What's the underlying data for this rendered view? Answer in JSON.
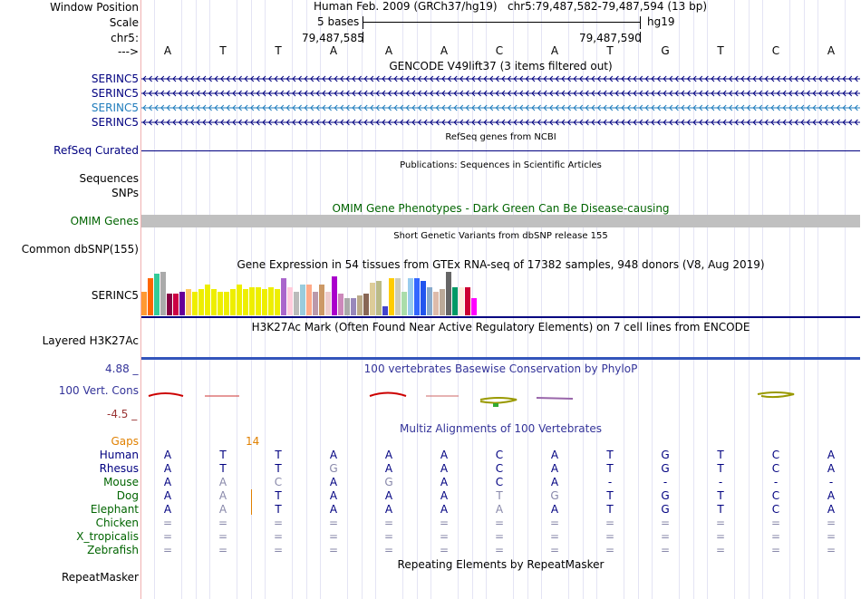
{
  "header": {
    "window_position_label": "Window Position",
    "scale_label": "Scale",
    "chr_label": "chr5:",
    "strand_label": "--->",
    "assembly": "Human Feb. 2009 (GRCh37/hg19)",
    "position": "chr5:79,487,582-79,487,594 (13 bp)",
    "scale_text": "5 bases",
    "db": "hg19",
    "coord_left": "79,487,585",
    "coord_right": "79,487,590",
    "bases": [
      "A",
      "T",
      "T",
      "A",
      "A",
      "A",
      "C",
      "A",
      "T",
      "G",
      "T",
      "C",
      "A"
    ]
  },
  "tracks": {
    "gencode_title": "GENCODE V49lift37 (3 items filtered out)",
    "gencode_items": [
      "SERINC5",
      "SERINC5",
      "SERINC5",
      "SERINC5"
    ],
    "refseq_title": "RefSeq genes from NCBI",
    "refseq_label": "RefSeq Curated",
    "pubs_title": "Publications: Sequences in Scientific Articles",
    "sequences_label": "Sequences",
    "snps_label": "SNPs",
    "omim_title": "OMIM Gene Phenotypes - Dark Green Can Be Disease-causing",
    "omim_label": "OMIM Genes",
    "dbsnp_title": "Short Genetic Variants from dbSNP release 155",
    "dbsnp_label": "Common dbSNP(155)",
    "gtex_title": "Gene Expression in 54 tissues from GTEx RNA-seq of 17382 samples, 948 donors (V8, Aug 2019)",
    "gtex_label": "SERINC5",
    "h3k_title": "H3K27Ac Mark (Often Found Near Active Regulatory Elements) on 7 cell lines from ENCODE",
    "h3k_label": "Layered H3K27Ac",
    "phylop_title": "100 vertebrates Basewise Conservation by PhyloP",
    "phylop_label": "100 Vert. Cons",
    "phylop_max": "4.88 _",
    "phylop_min": "-4.5 _",
    "multiz_title": "Multiz Alignments of 100 Vertebrates",
    "gaps_label": "Gaps",
    "gaps_value": "14",
    "repeat_title": "Repeating Elements by RepeatMasker",
    "repeat_label": "RepeatMasker"
  },
  "gtex_colors": [
    "#ff9933",
    "#ff6600",
    "#33cc99",
    "#aaaaaa",
    "#880044",
    "#cc0044",
    "#660099",
    "#ffcc66",
    "#eeee00",
    "#eeee00",
    "#eeee00",
    "#eeee00",
    "#eeee00",
    "#eeee00",
    "#eeee00",
    "#eeee00",
    "#eeee00",
    "#eeee00",
    "#eeee00",
    "#eeee00",
    "#eeee00",
    "#eeee00",
    "#aa66cc",
    "#ffccdd",
    "#bbbbbb",
    "#99ccdd",
    "#ffaa88",
    "#bb99aa",
    "#cc9966",
    "#eecccc",
    "#aa00cc",
    "#cc88bb",
    "#aaaaaa",
    "#9988bb",
    "#bbaa88",
    "#886655",
    "#ddcc99",
    "#bbbb88",
    "#4444cc",
    "#ffcc00",
    "#ccccbb",
    "#aaddaa",
    "#99ccee",
    "#3366ff",
    "#2255ee",
    "#88aacc",
    "#ddbbaa",
    "#bbaa99",
    "#666666",
    "#009966",
    "#ffeedd",
    "#cc0033",
    "#ff00ff",
    "#ffffff"
  ],
  "gtex_values": [
    0.55,
    0.85,
    0.95,
    1.0,
    0.5,
    0.5,
    0.55,
    0.6,
    0.55,
    0.6,
    0.7,
    0.6,
    0.55,
    0.55,
    0.6,
    0.7,
    0.6,
    0.65,
    0.65,
    0.6,
    0.65,
    0.6,
    0.85,
    0.65,
    0.55,
    0.7,
    0.7,
    0.55,
    0.7,
    0.55,
    0.9,
    0.5,
    0.4,
    0.4,
    0.45,
    0.5,
    0.75,
    0.8,
    0.2,
    0.85,
    0.85,
    0.55,
    0.85,
    0.85,
    0.8,
    0.65,
    0.55,
    0.6,
    1.0,
    0.65,
    0.65,
    0.65,
    0.4,
    0.0
  ],
  "alignment": {
    "species": [
      {
        "name": "Human",
        "color": "#000080",
        "bases": [
          "A",
          "T",
          "T",
          "A",
          "A",
          "A",
          "C",
          "A",
          "T",
          "G",
          "T",
          "C",
          "A"
        ],
        "faded": []
      },
      {
        "name": "Rhesus",
        "color": "#000080",
        "bases": [
          "A",
          "T",
          "T",
          "G",
          "A",
          "A",
          "C",
          "A",
          "T",
          "G",
          "T",
          "C",
          "A"
        ],
        "faded": [
          3
        ]
      },
      {
        "name": "Mouse",
        "color": "#006400",
        "bases": [
          "A",
          "A",
          "C",
          "A",
          "G",
          "A",
          "C",
          "A",
          "-",
          "-",
          "-",
          "-",
          "-"
        ],
        "faded": [
          1,
          2,
          4
        ]
      },
      {
        "name": "Dog",
        "color": "#006400",
        "bases": [
          "A",
          "A",
          "T",
          "A",
          "A",
          "A",
          "T",
          "G",
          "T",
          "G",
          "T",
          "C",
          "A"
        ],
        "faded": [
          1,
          6,
          7
        ]
      },
      {
        "name": "Elephant",
        "color": "#006400",
        "bases": [
          "A",
          "A",
          "T",
          "A",
          "A",
          "A",
          "A",
          "A",
          "T",
          "G",
          "T",
          "C",
          "A"
        ],
        "faded": [
          1,
          6
        ]
      },
      {
        "name": "Chicken",
        "color": "#006400",
        "bases": [
          "=",
          "=",
          "=",
          "=",
          "=",
          "=",
          "=",
          "=",
          "=",
          "=",
          "=",
          "=",
          "="
        ],
        "faded": [
          0,
          1,
          2,
          3,
          4,
          5,
          6,
          7,
          8,
          9,
          10,
          11,
          12
        ]
      },
      {
        "name": "X_tropicalis",
        "color": "#006400",
        "bases": [
          "=",
          "=",
          "=",
          "=",
          "=",
          "=",
          "=",
          "=",
          "=",
          "=",
          "=",
          "=",
          "="
        ],
        "faded": [
          0,
          1,
          2,
          3,
          4,
          5,
          6,
          7,
          8,
          9,
          10,
          11,
          12
        ]
      },
      {
        "name": "Zebrafish",
        "color": "#006400",
        "bases": [
          "=",
          "=",
          "=",
          "=",
          "=",
          "=",
          "=",
          "=",
          "=",
          "=",
          "=",
          "=",
          "="
        ],
        "faded": [
          0,
          1,
          2,
          3,
          4,
          5,
          6,
          7,
          8,
          9,
          10,
          11,
          12
        ]
      }
    ]
  },
  "colors": {
    "navy": "#000080",
    "dark_green": "#006400",
    "gaps_orange": "#e08000",
    "phylop_blue": "#333399",
    "phylop_low": "#993333",
    "omim_bar": "#c0c0c0",
    "gencode_teal": "#1f7cbc"
  }
}
